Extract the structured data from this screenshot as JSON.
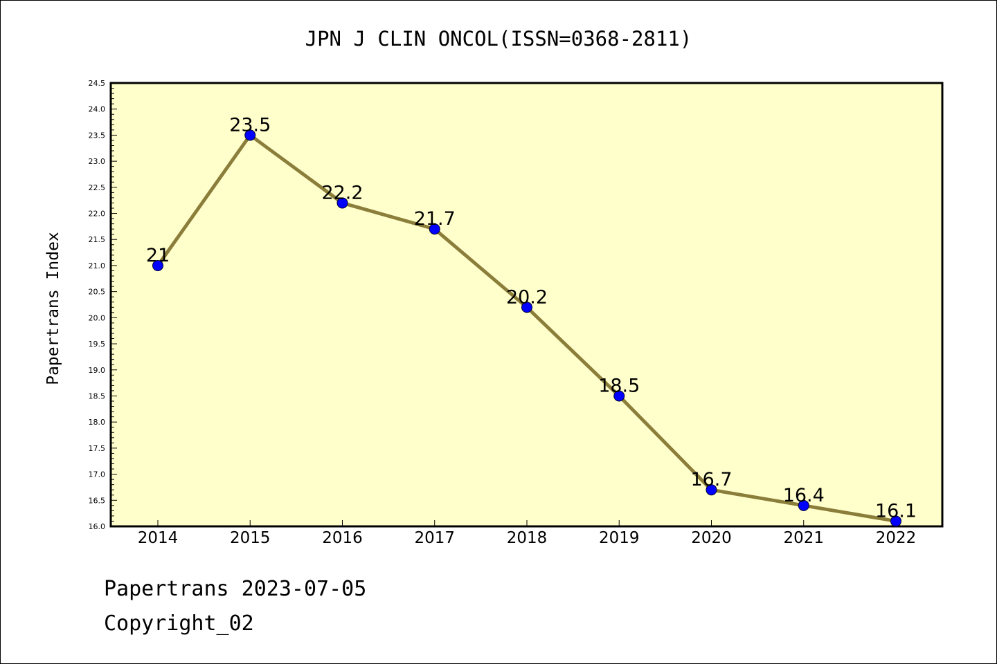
{
  "chart_data": {
    "type": "line",
    "title": "JPN J CLIN ONCOL(ISSN=0368-2811)",
    "xlabel": "",
    "ylabel": "Papertrans Index",
    "x": [
      "2014",
      "2015",
      "2016",
      "2017",
      "2018",
      "2019",
      "2020",
      "2021",
      "2022"
    ],
    "values": [
      21,
      23.5,
      22.2,
      21.7,
      20.2,
      18.5,
      16.7,
      16.4,
      16.1
    ],
    "data_labels": [
      "21",
      "23.5",
      "22.2",
      "21.7",
      "20.2",
      "18.5",
      "16.7",
      "16.4",
      "16.1"
    ],
    "ylim": [
      16.0,
      24.5
    ],
    "yticks": [
      "16.0",
      "16.5",
      "17.0",
      "17.5",
      "18.0",
      "18.5",
      "19.0",
      "19.5",
      "20.0",
      "20.5",
      "21.0",
      "21.5",
      "22.0",
      "22.5",
      "23.0",
      "23.5",
      "24.0",
      "24.5"
    ],
    "grid": false,
    "colors": {
      "plot_background": "#ffffcc",
      "line": "#8b7d3a",
      "marker": "#0000ff"
    }
  },
  "footer": {
    "date_line": "Papertrans 2023-07-05",
    "copyright": "Copyright_02"
  }
}
